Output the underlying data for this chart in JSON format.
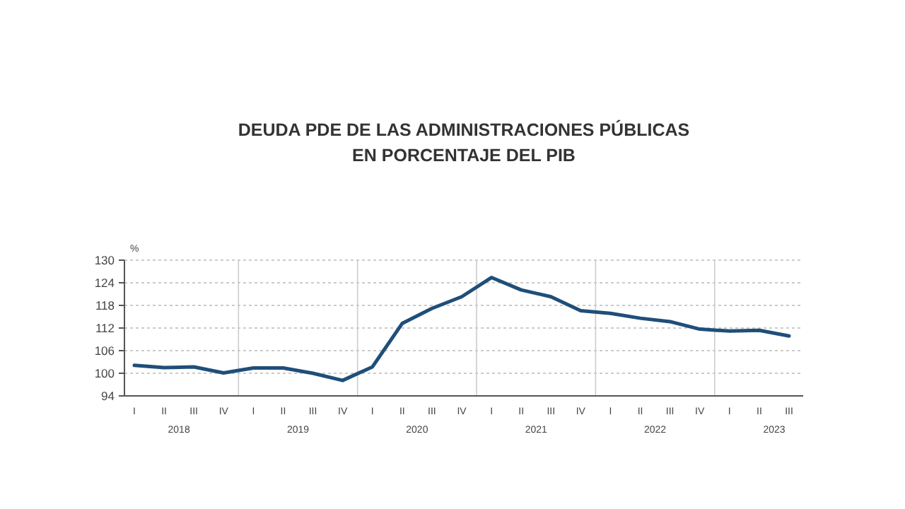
{
  "chart_data": {
    "type": "line",
    "title": "DEUDA PDE DE LAS ADMINISTRACIONES PÚBLICAS\nEN PORCENTAJE DEL PIB",
    "ylabel": "%",
    "categories": [
      "I",
      "II",
      "III",
      "IV",
      "I",
      "II",
      "III",
      "IV",
      "I",
      "II",
      "III",
      "IV",
      "I",
      "II",
      "III",
      "IV",
      "I",
      "II",
      "III",
      "IV",
      "I",
      "II",
      "III"
    ],
    "series": [
      {
        "color": "#1f4e79",
        "values": [
          102.1,
          101.5,
          101.7,
          100.1,
          101.4,
          101.4,
          100.0,
          98.1,
          101.7,
          113.2,
          117.2,
          120.3,
          125.4,
          122.1,
          120.3,
          116.6,
          115.9,
          114.6,
          113.7,
          111.7,
          111.2,
          111.4,
          109.9
        ]
      }
    ],
    "annotations": [
      "2018",
      "2019",
      "2020",
      "2021",
      "2022",
      "2023"
    ],
    "ylim": [
      94,
      130
    ],
    "yticks": [
      94,
      100,
      106,
      112,
      118,
      124,
      130
    ],
    "grid": "y",
    "marker": "none",
    "line_style": "solid"
  }
}
